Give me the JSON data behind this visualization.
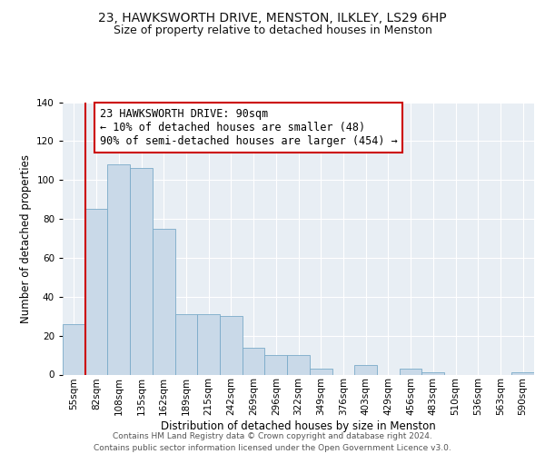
{
  "title": "23, HAWKSWORTH DRIVE, MENSTON, ILKLEY, LS29 6HP",
  "subtitle": "Size of property relative to detached houses in Menston",
  "xlabel": "Distribution of detached houses by size in Menston",
  "ylabel": "Number of detached properties",
  "bin_labels": [
    "55sqm",
    "82sqm",
    "108sqm",
    "135sqm",
    "162sqm",
    "189sqm",
    "215sqm",
    "242sqm",
    "269sqm",
    "296sqm",
    "322sqm",
    "349sqm",
    "376sqm",
    "403sqm",
    "429sqm",
    "456sqm",
    "483sqm",
    "510sqm",
    "536sqm",
    "563sqm",
    "590sqm"
  ],
  "bar_values": [
    26,
    85,
    108,
    106,
    75,
    31,
    31,
    30,
    14,
    10,
    10,
    3,
    0,
    5,
    0,
    3,
    1,
    0,
    0,
    0,
    1
  ],
  "bar_color": "#c9d9e8",
  "bar_edgecolor": "#7aaac8",
  "vline_x_index": 1,
  "vline_color": "#cc0000",
  "annotation_text": "23 HAWKSWORTH DRIVE: 90sqm\n← 10% of detached houses are smaller (48)\n90% of semi-detached houses are larger (454) →",
  "annotation_box_edgecolor": "#cc0000",
  "annotation_box_facecolor": "#ffffff",
  "ylim": [
    0,
    140
  ],
  "yticks": [
    0,
    20,
    40,
    60,
    80,
    100,
    120,
    140
  ],
  "footer_line1": "Contains HM Land Registry data © Crown copyright and database right 2024.",
  "footer_line2": "Contains public sector information licensed under the Open Government Licence v3.0.",
  "plot_bg_color": "#e8eef4",
  "fig_bg_color": "#ffffff",
  "title_fontsize": 10,
  "subtitle_fontsize": 9,
  "axis_label_fontsize": 8.5,
  "tick_fontsize": 7.5,
  "annotation_fontsize": 8.5,
  "footer_fontsize": 6.5
}
